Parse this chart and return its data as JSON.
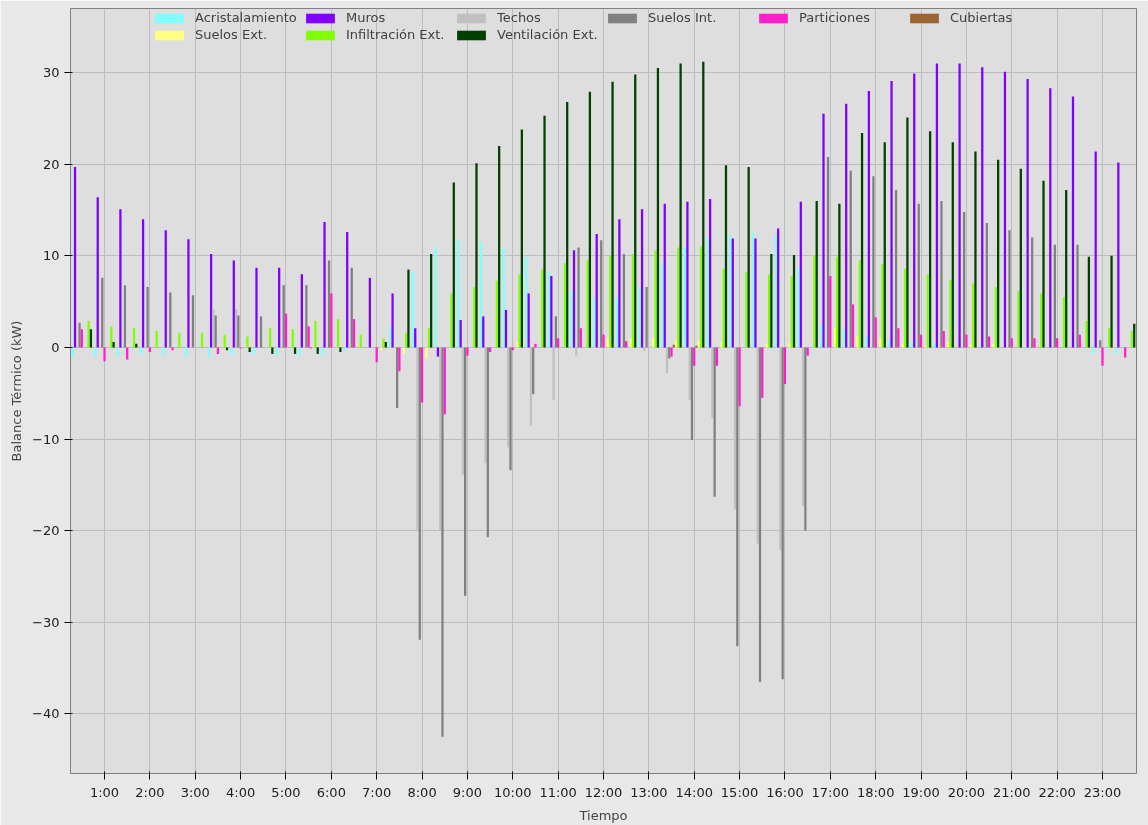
{
  "chart_data": {
    "type": "bar",
    "xlabel": "Tiempo",
    "ylabel": "Balance Térmico (kW)",
    "x": [
      0.5,
      1,
      1.5,
      2,
      2.5,
      3,
      3.5,
      4,
      4.5,
      5,
      5.5,
      6,
      6.5,
      7,
      7.5,
      8,
      8.5,
      9,
      9.5,
      10,
      10.5,
      11,
      11.5,
      12,
      12.5,
      13,
      13.5,
      14,
      14.5,
      15,
      15.5,
      16,
      16.5,
      17,
      17.5,
      18,
      18.5,
      19,
      19.5,
      20,
      20.5,
      21,
      21.5,
      22,
      22.5,
      23,
      23.5
    ],
    "series": [
      {
        "name": "Acristalamiento",
        "color": "#80ffff",
        "values": [
          -1.0,
          -1.0,
          -1.0,
          -0.8,
          -0.9,
          -1.0,
          -1.0,
          -0.8,
          -0.8,
          -0.9,
          -1.0,
          -0.9,
          -0.3,
          0,
          2.2,
          8.3,
          11.0,
          11.7,
          11.5,
          10.8,
          9.9,
          8.1,
          6.2,
          5.4,
          5.4,
          6.6,
          9.2,
          11.0,
          12.0,
          12.3,
          12.5,
          12.4,
          8.7,
          2.5,
          2.0,
          1.2,
          0.8,
          0.6,
          0.4,
          0,
          0,
          0,
          -0.2,
          0,
          0,
          -0.7,
          -0.7
        ]
      },
      {
        "name": "Muros",
        "color": "#8000ff",
        "values": [
          19.7,
          16.4,
          15.1,
          14.0,
          12.8,
          11.8,
          10.2,
          9.5,
          8.7,
          8.7,
          8.0,
          13.7,
          12.6,
          7.6,
          5.9,
          2.1,
          -1.0,
          3.0,
          3.4,
          4.1,
          5.9,
          7.8,
          10.6,
          12.4,
          14.0,
          15.1,
          15.7,
          15.9,
          16.2,
          11.9,
          11.9,
          13.0,
          15.9,
          25.5,
          26.6,
          28.0,
          29.1,
          29.9,
          31.0,
          31.0,
          30.6,
          30.1,
          29.3,
          28.3,
          27.4,
          21.4,
          20.2
        ]
      },
      {
        "name": "Techos",
        "color": "#c0c0c0",
        "values": [
          0,
          0,
          0,
          0,
          0,
          0,
          4.2,
          4.2,
          0,
          0,
          0,
          0,
          0,
          0,
          0,
          -20,
          -20,
          -13.9,
          -12.6,
          -10.9,
          -8.5,
          -5.7,
          -0.9,
          0,
          0,
          -0.4,
          -2.8,
          -5.7,
          -7.7,
          -17.7,
          -21.4,
          -22.1,
          -17.3,
          0,
          0,
          0,
          0,
          0,
          0,
          0,
          0,
          0,
          0,
          0,
          0,
          0,
          0
        ]
      },
      {
        "name": "Suelos Int.",
        "color": "#808080",
        "values": [
          2.7,
          7.6,
          6.8,
          6.6,
          6.0,
          5.7,
          3.5,
          3.5,
          3.4,
          6.8,
          6.8,
          9.5,
          8.7,
          0,
          -6.6,
          -31.9,
          -42.5,
          -27.1,
          -20.7,
          -13.4,
          -5.1,
          3.4,
          10.9,
          11.7,
          10.2,
          6.6,
          -1.2,
          -10.1,
          -16.3,
          -32.6,
          -36.5,
          -36.2,
          -20.0,
          20.8,
          19.3,
          18.7,
          17.2,
          15.7,
          16.0,
          14.8,
          13.6,
          12.8,
          12.0,
          11.2,
          11.2,
          0.8,
          0
        ]
      },
      {
        "name": "Particiones",
        "color": "#ff1fc8",
        "values": [
          2.0,
          -1.5,
          -1.3,
          -0.5,
          -0.3,
          0,
          -0.7,
          -0.1,
          0,
          3.7,
          2.3,
          5.9,
          3.1,
          -1.6,
          -2.6,
          -6.0,
          -7.3,
          -0.9,
          -0.5,
          -0.3,
          0.4,
          1.0,
          2.1,
          1.4,
          0.7,
          0,
          -1.0,
          -2.0,
          -2.0,
          -6.4,
          -5.5,
          -4.0,
          -0.9,
          7.8,
          4.7,
          3.3,
          2.1,
          1.4,
          1.8,
          1.4,
          1.2,
          1.0,
          1.0,
          1.0,
          1.4,
          -2.0,
          -1.1
        ]
      },
      {
        "name": "Cubiertas",
        "color": "#996633",
        "values": [
          0,
          0,
          0,
          0,
          0,
          0,
          0,
          0,
          0,
          0,
          -0.1,
          0,
          0,
          0,
          0,
          0,
          0,
          0,
          0,
          0,
          0,
          0,
          0,
          0,
          0,
          null,
          0.3,
          0.2,
          0,
          0,
          0,
          null,
          0,
          0,
          0,
          0,
          0,
          0,
          0,
          0,
          0,
          0,
          0,
          0,
          0,
          0,
          0
        ]
      },
      {
        "name": "Suelos Ext.",
        "color": "#ffff80",
        "values": [
          0,
          0,
          0,
          0,
          0,
          0,
          0,
          0,
          0,
          0,
          0,
          0,
          0,
          -0.3,
          -0.7,
          -1.2,
          0,
          0,
          0,
          0.6,
          0,
          0,
          0,
          1.0,
          1.0,
          1.0,
          0.8,
          0.7,
          0.6,
          null,
          0.4,
          0.5,
          0,
          2.1,
          1.2,
          1.0,
          0.4,
          0.2,
          0.5,
          0.4,
          0.4,
          0,
          0,
          0,
          null,
          0,
          0
        ]
      },
      {
        "name": "Infiltración Ext.",
        "color": "#80ff00",
        "values": [
          2.9,
          2.3,
          2.1,
          1.8,
          1.6,
          1.6,
          1.4,
          1.2,
          2.1,
          2.0,
          2.9,
          3.1,
          1.4,
          1.0,
          1.6,
          2.1,
          5.9,
          6.6,
          7.3,
          8.0,
          8.5,
          9.2,
          9.5,
          10.0,
          10.2,
          10.6,
          10.9,
          11.0,
          8.6,
          8.2,
          8.0,
          7.8,
          10.0,
          9.9,
          9.5,
          9.1,
          8.6,
          8.0,
          7.4,
          7.0,
          6.6,
          6.2,
          5.9,
          5.5,
          2.9,
          2.1,
          1.8
        ]
      },
      {
        "name": "Ventilación Ext.",
        "color": "#004000",
        "values": [
          2.0,
          0.6,
          0.4,
          null,
          0,
          0,
          -0.3,
          -0.5,
          -0.7,
          -0.7,
          -0.7,
          -0.5,
          0,
          0.6,
          8.5,
          10.2,
          18.0,
          20.1,
          22.0,
          23.8,
          25.3,
          26.8,
          27.9,
          29.0,
          29.8,
          30.5,
          31.0,
          31.2,
          19.9,
          19.7,
          10.2,
          10.1,
          16.0,
          15.7,
          23.4,
          22.4,
          25.1,
          23.6,
          22.4,
          21.4,
          20.5,
          19.5,
          18.2,
          17.2,
          9.9,
          10.0,
          2.6
        ]
      }
    ],
    "xlim": [
      0.25,
      23.75
    ],
    "xticks": [
      {
        "value": 1,
        "label": "1:00"
      },
      {
        "value": 2,
        "label": "2:00"
      },
      {
        "value": 3,
        "label": "3:00"
      },
      {
        "value": 4,
        "label": "4:00"
      },
      {
        "value": 5,
        "label": "5:00"
      },
      {
        "value": 6,
        "label": "6:00"
      },
      {
        "value": 7,
        "label": "7:00"
      },
      {
        "value": 8,
        "label": "8:00"
      },
      {
        "value": 9,
        "label": "9:00"
      },
      {
        "value": 10,
        "label": "10:00"
      },
      {
        "value": 11,
        "label": "11:00"
      },
      {
        "value": 12,
        "label": "12:00"
      },
      {
        "value": 13,
        "label": "13:00"
      },
      {
        "value": 14,
        "label": "14:00"
      },
      {
        "value": 15,
        "label": "15:00"
      },
      {
        "value": 16,
        "label": "16:00"
      },
      {
        "value": 17,
        "label": "17:00"
      },
      {
        "value": 18,
        "label": "18:00"
      },
      {
        "value": 19,
        "label": "19:00"
      },
      {
        "value": 20,
        "label": "20:00"
      },
      {
        "value": 21,
        "label": "21:00"
      },
      {
        "value": 22,
        "label": "22:00"
      },
      {
        "value": 23,
        "label": "23:00"
      }
    ],
    "ylim": [
      -46.5,
      37
    ],
    "yticks": [
      -40,
      -30,
      -20,
      -10,
      0,
      10,
      20,
      30
    ],
    "grid": true,
    "legend": "top"
  }
}
